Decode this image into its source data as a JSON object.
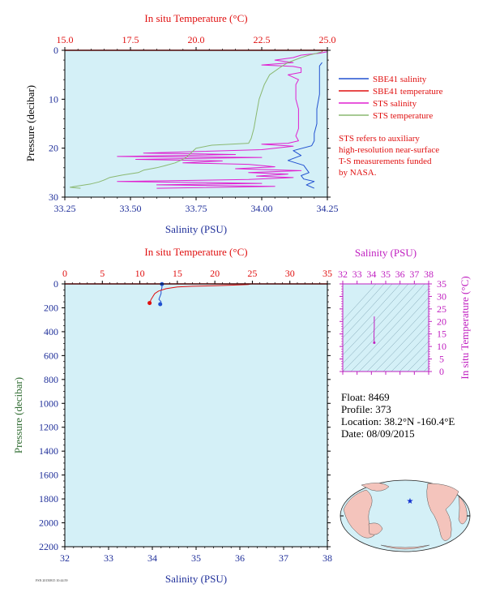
{
  "colors": {
    "plot_bg": "#d4f0f7",
    "salinity_axis": "#1f2f9a",
    "temperature_axis": "#e01010",
    "pressure_axis": "#2e6b30",
    "sbe_salinity": "#2050d0",
    "sbe_temperature": "#e01010",
    "sts_salinity": "#e020d0",
    "sts_temperature": "#8ab870",
    "ts_axis": "#c020c0",
    "land": "#f4c4bc",
    "ocean": "#d4f0f7"
  },
  "top_chart": {
    "temp_axis_title": "In situ Temperature (°C)",
    "sal_axis_title": "Salinity (PSU)",
    "pres_axis_title": "Pressure (decibar)",
    "legend": [
      {
        "label": "SBE41 salinity",
        "color": "#2050d0"
      },
      {
        "label": "SBE41 temperature",
        "color": "#e01010"
      },
      {
        "label": "STS salinity",
        "color": "#e020d0"
      },
      {
        "label": "STS temperature",
        "color": "#8ab870"
      }
    ],
    "note": [
      "STS refers to auxiliary",
      "high-resolution near-surface",
      "T-S measurements funded",
      "by NASA."
    ]
  },
  "bottom_chart": {
    "temp_axis_title": "In situ Temperature (°C)",
    "sal_axis_title": "Salinity (PSU)",
    "pres_axis_title": "Pressure (decibar)"
  },
  "ts_chart": {
    "sal_axis_title": "Salinity (PSU)",
    "temp_axis_title": "In situ Temperature (°C)"
  },
  "info": {
    "float": "Float:  8469",
    "profile": "Profile:  373",
    "location": "Location:  38.2°N  -160.4°E",
    "date": "Date:  08/09/2015"
  },
  "footer": "FSN 20150815 10:44:59",
  "chart_data": [
    {
      "type": "line",
      "title": "",
      "xlabel": "Salinity (PSU)",
      "x2label": "In situ Temperature (°C)",
      "ylabel": "Pressure (decibar)",
      "salinity_lim": [
        33.25,
        34.25
      ],
      "temperature_lim": [
        15.0,
        25.0
      ],
      "pressure_lim": [
        0,
        30
      ],
      "sal_ticks": [
        "33.25",
        "33.50",
        "33.75",
        "34.00",
        "34.25"
      ],
      "temp_ticks": [
        "15.0",
        "17.5",
        "20.0",
        "22.5",
        "25.0"
      ],
      "pres_ticks": [
        "0",
        "10",
        "20",
        "30"
      ],
      "series": [
        {
          "name": "SBE41 salinity",
          "axis": "salinity",
          "points": [
            [
              34.23,
              2.5
            ],
            [
              34.22,
              3.2
            ],
            [
              34.22,
              6
            ],
            [
              34.22,
              9
            ],
            [
              34.21,
              12
            ],
            [
              34.21,
              15
            ],
            [
              34.2,
              17
            ],
            [
              34.2,
              18.5
            ],
            [
              34.19,
              19.5
            ],
            [
              34.12,
              20.5
            ],
            [
              34.15,
              21.5
            ],
            [
              34.1,
              22.5
            ],
            [
              34.16,
              23.5
            ],
            [
              34.18,
              25
            ],
            [
              34.15,
              25.6
            ],
            [
              34.16,
              26.3
            ],
            [
              34.2,
              26.8
            ],
            [
              34.17,
              27.5
            ],
            [
              34.2,
              28.2
            ]
          ]
        },
        {
          "name": "SBE41 temperature",
          "axis": "temperature",
          "points": [
            [
              24.8,
              0
            ],
            [
              24.8,
              0.3
            ]
          ]
        },
        {
          "name": "STS salinity",
          "axis": "salinity",
          "points": [
            [
              34.25,
              0.3
            ],
            [
              34.22,
              0.6
            ],
            [
              34.15,
              1
            ],
            [
              34.12,
              1.5
            ],
            [
              34.05,
              2
            ],
            [
              34.12,
              2.5
            ],
            [
              34.0,
              3
            ],
            [
              34.12,
              3.3
            ],
            [
              34.15,
              3.6
            ],
            [
              34.15,
              4.5
            ],
            [
              34.1,
              5
            ],
            [
              34.14,
              6
            ],
            [
              34.13,
              7
            ],
            [
              34.13,
              8
            ],
            [
              34.13,
              10
            ],
            [
              34.14,
              12
            ],
            [
              34.14,
              14
            ],
            [
              34.14,
              16
            ],
            [
              34.13,
              17.5
            ],
            [
              34.14,
              18.5
            ],
            [
              34.1,
              19
            ],
            [
              34.0,
              19.2
            ],
            [
              34.12,
              19.6
            ],
            [
              34.0,
              20.3
            ],
            [
              33.55,
              21
            ],
            [
              33.9,
              21.3
            ],
            [
              33.45,
              21.7
            ],
            [
              34.0,
              21.9
            ],
            [
              33.52,
              22.3
            ],
            [
              33.85,
              22.6
            ],
            [
              33.7,
              23
            ],
            [
              33.95,
              23.3
            ],
            [
              34.05,
              23.8
            ],
            [
              33.9,
              24.2
            ],
            [
              34.15,
              24.6
            ],
            [
              33.95,
              25
            ],
            [
              34.1,
              25.3
            ],
            [
              33.98,
              25.7
            ],
            [
              34.12,
              26
            ],
            [
              33.95,
              26.4
            ],
            [
              33.45,
              26.8
            ],
            [
              34.0,
              27.2
            ],
            [
              33.6,
              27.5
            ],
            [
              34.05,
              27.8
            ],
            [
              33.6,
              28.2
            ]
          ]
        },
        {
          "name": "STS temperature",
          "axis": "temperature",
          "points": [
            [
              24.8,
              0.3
            ],
            [
              24.6,
              0.6
            ],
            [
              24.3,
              1
            ],
            [
              24.0,
              1.5
            ],
            [
              23.5,
              2.5
            ],
            [
              23.2,
              3.5
            ],
            [
              22.8,
              5
            ],
            [
              22.6,
              7
            ],
            [
              22.4,
              10
            ],
            [
              22.3,
              13
            ],
            [
              22.2,
              16
            ],
            [
              22.1,
              18
            ],
            [
              22.0,
              19
            ],
            [
              20.6,
              19.4
            ],
            [
              20.0,
              20
            ],
            [
              19.8,
              21
            ],
            [
              19.6,
              22
            ],
            [
              19.4,
              22.5
            ],
            [
              19.2,
              23
            ],
            [
              18.8,
              23.6
            ],
            [
              18.5,
              24
            ],
            [
              18.0,
              24.5
            ],
            [
              17.8,
              25
            ],
            [
              17.2,
              25.5
            ],
            [
              16.7,
              26
            ],
            [
              16.5,
              26.5
            ],
            [
              16.3,
              26.9
            ],
            [
              16.0,
              27.3
            ],
            [
              15.4,
              27.8
            ],
            [
              15.2,
              28.0
            ],
            [
              15.6,
              28.2
            ]
          ]
        }
      ]
    },
    {
      "type": "line",
      "title": "",
      "xlabel": "Salinity (PSU)",
      "x2label": "In situ Temperature (°C)",
      "ylabel": "Pressure (decibar)",
      "salinity_lim": [
        32,
        38
      ],
      "temperature_lim": [
        0,
        35
      ],
      "pressure_lim": [
        0,
        2200
      ],
      "sal_ticks": [
        "32",
        "33",
        "34",
        "35",
        "36",
        "37",
        "38"
      ],
      "temp_ticks": [
        "0",
        "5",
        "10",
        "15",
        "20",
        "25",
        "30",
        "35"
      ],
      "pres_ticks": [
        "0",
        "200",
        "400",
        "600",
        "800",
        "1000",
        "1200",
        "1400",
        "1600",
        "1800",
        "2000",
        "2200"
      ],
      "series": [
        {
          "name": "SBE41 salinity",
          "axis": "salinity",
          "points": [
            [
              34.22,
              2
            ],
            [
              34.22,
              30
            ],
            [
              34.2,
              60
            ],
            [
              34.2,
              80
            ],
            [
              34.15,
              130
            ],
            [
              34.2,
              150
            ],
            [
              34.18,
              170
            ]
          ]
        },
        {
          "name": "SBE41 temperature",
          "axis": "temperature",
          "points": [
            [
              24.8,
              0
            ],
            [
              24.5,
              5
            ],
            [
              22.5,
              10
            ],
            [
              20,
              15
            ],
            [
              17,
              20
            ],
            [
              15,
              25
            ],
            [
              13.5,
              40
            ],
            [
              12.5,
              60
            ],
            [
              12,
              80
            ],
            [
              11.8,
              100
            ],
            [
              11.5,
              130
            ],
            [
              11.3,
              160
            ]
          ]
        }
      ]
    },
    {
      "type": "scatter",
      "title": "",
      "xlabel": "Salinity (PSU)",
      "ylabel": "In situ Temperature (°C)",
      "xlim": [
        32,
        38
      ],
      "ylim": [
        0,
        35
      ],
      "x_ticks": [
        "32",
        "33",
        "34",
        "35",
        "36",
        "37",
        "38"
      ],
      "y_ticks": [
        "0",
        "5",
        "10",
        "15",
        "20",
        "25",
        "30",
        "35"
      ],
      "series": [
        {
          "points": [
            [
              34.2,
              22
            ],
            [
              34.2,
              18
            ],
            [
              34.18,
              14
            ],
            [
              34.2,
              11.5
            ]
          ]
        }
      ]
    }
  ]
}
